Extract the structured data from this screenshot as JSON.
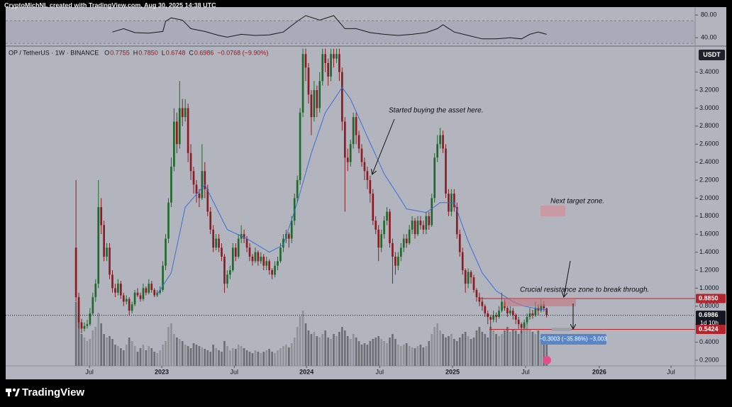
{
  "header": "CryptoMichNL created with TradingView.com, Aug 30, 2025 14:38 UTC",
  "footer_brand": "TradingView",
  "chart_data": {
    "type": "candlestick",
    "symbol": "OP / TetherUS · 1W · BINANCE",
    "ohlc_legend": [
      {
        "key": "O",
        "text": "0.7755"
      },
      {
        "key": "H",
        "text": "0.7850"
      },
      {
        "key": "L",
        "text": "0.6748"
      },
      {
        "key": "C",
        "text": "0.6986"
      }
    ],
    "change": "−0.0768 (−9.90%)",
    "currency": "USDT",
    "colors": {
      "up": "#1f6a2b",
      "down": "#8c1c22",
      "volume_up": "#8f9299",
      "volume_down": "#6c6f76"
    },
    "candles": [
      [
        1.45,
        2.2,
        0.85,
        0.9
      ],
      [
        0.9,
        0.95,
        0.55,
        0.62
      ],
      [
        0.62,
        0.66,
        0.5,
        0.55
      ],
      [
        0.55,
        0.62,
        0.52,
        0.58
      ],
      [
        0.58,
        0.65,
        0.55,
        0.6
      ],
      [
        0.6,
        0.78,
        0.58,
        0.72
      ],
      [
        0.72,
        0.95,
        0.7,
        0.9
      ],
      [
        0.9,
        1.1,
        0.85,
        1.05
      ],
      [
        1.05,
        2.2,
        1.0,
        1.9
      ],
      [
        1.9,
        2.0,
        1.6,
        1.7
      ],
      [
        1.7,
        1.75,
        1.3,
        1.35
      ],
      [
        1.35,
        1.5,
        1.3,
        1.45
      ],
      [
        1.45,
        1.5,
        1.1,
        1.15
      ],
      [
        1.15,
        1.2,
        0.95,
        1.0
      ],
      [
        1.0,
        1.05,
        0.9,
        0.95
      ],
      [
        0.95,
        1.1,
        0.92,
        1.05
      ],
      [
        1.05,
        1.08,
        0.88,
        0.92
      ],
      [
        0.92,
        0.95,
        0.8,
        0.85
      ],
      [
        0.85,
        0.92,
        0.82,
        0.88
      ],
      [
        0.88,
        0.9,
        0.7,
        0.75
      ],
      [
        0.75,
        0.85,
        0.72,
        0.82
      ],
      [
        0.82,
        0.98,
        0.8,
        0.95
      ],
      [
        0.95,
        1.0,
        0.9,
        0.92
      ],
      [
        0.92,
        0.95,
        0.85,
        0.88
      ],
      [
        0.88,
        1.05,
        0.86,
        1.0
      ],
      [
        1.0,
        1.02,
        0.92,
        0.95
      ],
      [
        0.95,
        1.1,
        0.93,
        1.05
      ],
      [
        1.05,
        1.08,
        0.95,
        0.98
      ],
      [
        0.98,
        1.0,
        0.9,
        0.92
      ],
      [
        0.92,
        0.98,
        0.9,
        0.95
      ],
      [
        0.95,
        1.02,
        0.93,
        0.98
      ],
      [
        0.98,
        1.3,
        0.96,
        1.25
      ],
      [
        1.25,
        1.6,
        1.2,
        1.55
      ],
      [
        1.55,
        2.0,
        1.5,
        1.95
      ],
      [
        1.95,
        2.45,
        1.9,
        2.35
      ],
      [
        2.35,
        3.0,
        2.3,
        2.85
      ],
      [
        2.85,
        2.95,
        2.5,
        2.6
      ],
      [
        2.6,
        3.3,
        2.55,
        3.0
      ],
      [
        3.0,
        3.1,
        2.8,
        2.9
      ],
      [
        2.9,
        3.1,
        2.85,
        3.0
      ],
      [
        3.0,
        3.05,
        2.4,
        2.5
      ],
      [
        2.5,
        2.6,
        2.2,
        2.3
      ],
      [
        2.3,
        2.35,
        2.05,
        2.15
      ],
      [
        2.15,
        2.2,
        1.95,
        2.05
      ],
      [
        2.05,
        2.1,
        1.9,
        2.0
      ],
      [
        2.0,
        2.6,
        1.98,
        2.3
      ],
      [
        2.3,
        2.4,
        2.0,
        2.1
      ],
      [
        2.1,
        2.15,
        1.8,
        1.85
      ],
      [
        1.85,
        1.9,
        1.6,
        1.65
      ],
      [
        1.65,
        1.7,
        1.4,
        1.45
      ],
      [
        1.45,
        1.6,
        1.42,
        1.55
      ],
      [
        1.55,
        1.6,
        1.4,
        1.45
      ],
      [
        1.45,
        1.5,
        1.3,
        1.35
      ],
      [
        1.35,
        1.38,
        0.95,
        1.05
      ],
      [
        1.05,
        1.2,
        1.0,
        1.15
      ],
      [
        1.15,
        1.25,
        1.1,
        1.2
      ],
      [
        1.2,
        1.5,
        1.18,
        1.45
      ],
      [
        1.45,
        1.5,
        1.3,
        1.35
      ],
      [
        1.35,
        1.6,
        1.33,
        1.55
      ],
      [
        1.55,
        1.7,
        1.5,
        1.6
      ],
      [
        1.6,
        1.65,
        1.5,
        1.55
      ],
      [
        1.55,
        1.58,
        1.4,
        1.45
      ],
      [
        1.45,
        1.5,
        1.3,
        1.35
      ],
      [
        1.35,
        1.38,
        1.25,
        1.3
      ],
      [
        1.3,
        1.45,
        1.28,
        1.4
      ],
      [
        1.4,
        1.42,
        1.25,
        1.3
      ],
      [
        1.3,
        1.4,
        1.27,
        1.35
      ],
      [
        1.35,
        1.38,
        1.2,
        1.25
      ],
      [
        1.25,
        1.35,
        1.2,
        1.3
      ],
      [
        1.3,
        1.32,
        1.15,
        1.2
      ],
      [
        1.2,
        1.22,
        1.1,
        1.15
      ],
      [
        1.15,
        1.3,
        1.12,
        1.25
      ],
      [
        1.25,
        1.35,
        1.2,
        1.3
      ],
      [
        1.3,
        1.5,
        1.28,
        1.45
      ],
      [
        1.45,
        1.6,
        1.4,
        1.55
      ],
      [
        1.55,
        1.65,
        1.5,
        1.6
      ],
      [
        1.6,
        1.62,
        1.45,
        1.55
      ],
      [
        1.55,
        1.8,
        1.5,
        1.75
      ],
      [
        1.75,
        2.05,
        1.7,
        2.0
      ],
      [
        2.0,
        2.25,
        1.95,
        2.2
      ],
      [
        2.2,
        3.0,
        2.15,
        2.95
      ],
      [
        2.95,
        3.66,
        2.9,
        3.6
      ],
      [
        3.6,
        3.66,
        3.3,
        3.45
      ],
      [
        3.45,
        3.5,
        3.05,
        3.15
      ],
      [
        3.15,
        3.2,
        2.7,
        2.9
      ],
      [
        2.9,
        3.3,
        2.85,
        3.2
      ],
      [
        3.2,
        3.25,
        2.9,
        3.0
      ],
      [
        3.0,
        3.4,
        2.95,
        3.3
      ],
      [
        3.3,
        3.66,
        3.25,
        3.6
      ],
      [
        3.6,
        3.66,
        3.4,
        3.5
      ],
      [
        3.5,
        3.55,
        3.25,
        3.35
      ],
      [
        3.35,
        3.66,
        3.3,
        3.6
      ],
      [
        3.6,
        3.66,
        3.45,
        3.55
      ],
      [
        3.55,
        3.66,
        3.5,
        3.6
      ],
      [
        3.6,
        3.66,
        3.3,
        3.4
      ],
      [
        3.4,
        3.45,
        2.75,
        2.85
      ],
      [
        2.85,
        2.9,
        1.85,
        2.45
      ],
      [
        2.45,
        2.55,
        2.3,
        2.4
      ],
      [
        2.4,
        2.65,
        2.35,
        2.6
      ],
      [
        2.6,
        2.95,
        2.55,
        2.9
      ],
      [
        2.9,
        2.95,
        2.6,
        2.7
      ],
      [
        2.7,
        2.75,
        2.5,
        2.55
      ],
      [
        2.55,
        2.6,
        2.35,
        2.4
      ],
      [
        2.4,
        2.45,
        2.2,
        2.3
      ],
      [
        2.3,
        2.35,
        2.1,
        2.2
      ],
      [
        2.2,
        2.25,
        1.95,
        2.05
      ],
      [
        2.05,
        2.1,
        1.7,
        1.75
      ],
      [
        1.75,
        1.8,
        1.6,
        1.65
      ],
      [
        1.65,
        1.7,
        1.3,
        1.45
      ],
      [
        1.45,
        1.65,
        1.4,
        1.6
      ],
      [
        1.6,
        1.8,
        1.55,
        1.75
      ],
      [
        1.75,
        1.9,
        1.7,
        1.85
      ],
      [
        1.85,
        1.88,
        1.45,
        1.5
      ],
      [
        1.5,
        1.55,
        1.05,
        1.35
      ],
      [
        1.35,
        1.4,
        1.15,
        1.25
      ],
      [
        1.25,
        1.4,
        1.2,
        1.35
      ],
      [
        1.35,
        1.5,
        1.3,
        1.45
      ],
      [
        1.45,
        1.6,
        1.4,
        1.55
      ],
      [
        1.55,
        1.6,
        1.45,
        1.5
      ],
      [
        1.5,
        1.7,
        1.48,
        1.65
      ],
      [
        1.65,
        1.8,
        1.6,
        1.75
      ],
      [
        1.75,
        1.78,
        1.55,
        1.6
      ],
      [
        1.6,
        1.8,
        1.58,
        1.75
      ],
      [
        1.75,
        1.8,
        1.65,
        1.7
      ],
      [
        1.7,
        1.75,
        1.6,
        1.65
      ],
      [
        1.65,
        1.85,
        1.6,
        1.8
      ],
      [
        1.8,
        1.85,
        1.65,
        1.7
      ],
      [
        1.7,
        2.05,
        1.68,
        2.0
      ],
      [
        2.0,
        2.5,
        1.95,
        2.45
      ],
      [
        2.45,
        2.7,
        2.4,
        2.6
      ],
      [
        2.6,
        2.78,
        2.55,
        2.7
      ],
      [
        2.7,
        2.75,
        2.5,
        2.55
      ],
      [
        2.55,
        2.6,
        2.0,
        2.05
      ],
      [
        2.05,
        2.1,
        1.8,
        1.85
      ],
      [
        1.85,
        2.1,
        1.8,
        2.05
      ],
      [
        2.05,
        2.1,
        1.85,
        1.9
      ],
      [
        1.9,
        1.95,
        1.55,
        1.6
      ],
      [
        1.6,
        1.65,
        1.35,
        1.4
      ],
      [
        1.4,
        1.45,
        1.15,
        1.2
      ],
      [
        1.2,
        1.22,
        0.95,
        1.05
      ],
      [
        1.05,
        1.22,
        1.0,
        1.18
      ],
      [
        1.18,
        1.2,
        1.05,
        1.12
      ],
      [
        1.12,
        1.15,
        0.95,
        0.98
      ],
      [
        0.98,
        1.0,
        0.85,
        0.9
      ],
      [
        0.9,
        0.95,
        0.8,
        0.85
      ],
      [
        0.85,
        0.9,
        0.75,
        0.8
      ],
      [
        0.8,
        0.82,
        0.68,
        0.72
      ],
      [
        0.72,
        0.75,
        0.6,
        0.68
      ],
      [
        0.68,
        0.7,
        0.55,
        0.65
      ],
      [
        0.65,
        0.75,
        0.62,
        0.7
      ],
      [
        0.7,
        0.73,
        0.62,
        0.68
      ],
      [
        0.68,
        0.8,
        0.66,
        0.75
      ],
      [
        0.75,
        0.95,
        0.73,
        0.85
      ],
      [
        0.85,
        0.88,
        0.75,
        0.78
      ],
      [
        0.78,
        0.8,
        0.68,
        0.72
      ],
      [
        0.72,
        0.8,
        0.7,
        0.75
      ],
      [
        0.75,
        0.78,
        0.65,
        0.7
      ],
      [
        0.7,
        0.72,
        0.6,
        0.65
      ],
      [
        0.65,
        0.68,
        0.55,
        0.6
      ],
      [
        0.6,
        0.62,
        0.5,
        0.56
      ],
      [
        0.56,
        0.65,
        0.54,
        0.62
      ],
      [
        0.62,
        0.72,
        0.6,
        0.68
      ],
      [
        0.68,
        0.78,
        0.65,
        0.72
      ],
      [
        0.72,
        0.76,
        0.66,
        0.7
      ],
      [
        0.7,
        0.85,
        0.68,
        0.78
      ],
      [
        0.78,
        0.82,
        0.7,
        0.75
      ],
      [
        0.75,
        0.88,
        0.73,
        0.82
      ],
      [
        0.82,
        0.86,
        0.74,
        0.7755
      ],
      [
        0.7755,
        0.785,
        0.6748,
        0.6986
      ]
    ],
    "xlim": [
      -25.1,
      221
    ],
    "xticks": [
      {
        "value": 4.8,
        "label": "Jul"
      },
      {
        "value": 30.6,
        "label": "2023"
      },
      {
        "value": 56.5,
        "label": "Jul"
      },
      {
        "value": 82.3,
        "label": "2024"
      },
      {
        "value": 108.4,
        "label": "Jul"
      },
      {
        "value": 134.4,
        "label": "2025"
      },
      {
        "value": 160.5,
        "label": "Jul"
      },
      {
        "value": 186.8,
        "label": "2026"
      },
      {
        "value": 212.4,
        "label": "Jul"
      }
    ],
    "ylim": [
      0.137,
      3.665
    ],
    "yticks": [
      {
        "value": 0.2,
        "label": "0.2000"
      },
      {
        "value": 0.4,
        "label": "0.4000"
      },
      {
        "value": 0.6,
        "label": "0.6000"
      },
      {
        "value": 0.8,
        "label": "0.8000"
      },
      {
        "value": 1,
        "label": "1.0000"
      },
      {
        "value": 1.2,
        "label": "1.2000"
      },
      {
        "value": 1.4,
        "label": "1.4000"
      },
      {
        "value": 1.6,
        "label": "1.6000"
      },
      {
        "value": 1.8,
        "label": "1.8000"
      },
      {
        "value": 2,
        "label": "2.0000"
      },
      {
        "value": 2.2,
        "label": "2.2000"
      },
      {
        "value": 2.4,
        "label": "2.4000"
      },
      {
        "value": 2.6,
        "label": "2.6000"
      },
      {
        "value": 2.8,
        "label": "2.8000"
      },
      {
        "value": 3,
        "label": "3.0000"
      },
      {
        "value": 3.2,
        "label": "3.2000"
      },
      {
        "value": 3.4,
        "label": "3.4000"
      }
    ],
    "volume": {
      "ylim": [
        0,
        100
      ],
      "values": [
        90,
        70,
        45,
        40,
        35,
        38,
        50,
        55,
        75,
        60,
        45,
        40,
        42,
        38,
        30,
        28,
        25,
        22,
        30,
        40,
        35,
        28,
        20,
        25,
        30,
        22,
        28,
        25,
        20,
        18,
        22,
        30,
        35,
        55,
        60,
        45,
        40,
        38,
        35,
        30,
        28,
        25,
        32,
        30,
        28,
        26,
        24,
        22,
        20,
        30,
        25,
        22,
        20,
        35,
        28,
        22,
        25,
        24,
        30,
        28,
        25,
        22,
        20,
        18,
        22,
        20,
        18,
        20,
        22,
        24,
        20,
        18,
        22,
        25,
        28,
        30,
        26,
        32,
        40,
        55,
        70,
        78,
        60,
        50,
        45,
        48,
        42,
        40,
        45,
        50,
        40,
        38,
        45,
        42,
        48,
        55,
        50,
        42,
        38,
        45,
        40,
        35,
        30,
        32,
        30,
        35,
        38,
        40,
        42,
        38,
        35,
        32,
        40,
        45,
        38,
        30,
        28,
        30,
        32,
        28,
        26,
        25,
        28,
        30,
        26,
        28,
        35,
        45,
        55,
        60,
        50,
        45,
        40,
        42,
        45,
        38,
        35,
        40,
        45,
        48,
        42,
        38,
        40,
        50,
        55,
        48,
        45,
        40,
        55,
        50,
        45,
        42,
        45,
        50,
        55,
        48,
        52,
        50,
        45,
        50,
        55,
        60,
        52,
        48,
        45,
        50,
        40,
        35,
        30
      ]
    },
    "ma": {
      "color": "#3d6fd6",
      "x": [
        29,
        34,
        39,
        46,
        54,
        61,
        69,
        74,
        79,
        84,
        89,
        95,
        98,
        103,
        110,
        115,
        118,
        125,
        130,
        135,
        140,
        145,
        150,
        156,
        160,
        165,
        168
      ],
      "values": [
        0.93,
        1.17,
        1.9,
        2.15,
        1.65,
        1.55,
        1.4,
        1.48,
        1.95,
        2.5,
        2.95,
        3.23,
        3.1,
        2.75,
        2.27,
        2.03,
        1.88,
        1.84,
        1.95,
        1.95,
        1.52,
        1.17,
        0.97,
        0.85,
        0.8,
        0.77,
        0.76
      ]
    },
    "rsi": {
      "color": "#1a1a1a",
      "ylim": [
        29,
        94
      ],
      "band": [
        30,
        70
      ],
      "yticks": [
        {
          "value": 80,
          "label": "80.00"
        },
        {
          "value": 40,
          "label": "40.00"
        }
      ],
      "x": [
        13,
        17,
        21,
        26,
        31,
        32,
        34,
        38,
        41,
        46,
        51,
        54,
        59,
        64,
        69,
        74,
        79,
        82,
        87,
        92,
        96,
        100,
        105,
        110,
        115,
        120,
        125,
        129,
        131,
        135,
        140,
        145,
        150,
        155,
        159,
        162,
        165,
        168
      ],
      "values": [
        50,
        56,
        49,
        48,
        51,
        69,
        75,
        71,
        56,
        51,
        44,
        41,
        46,
        44,
        45,
        50,
        69,
        79,
        71,
        79,
        56,
        56,
        49,
        46,
        44,
        46,
        49,
        56,
        63,
        50,
        44,
        38,
        38,
        40,
        38,
        46,
        50,
        46
      ]
    },
    "levels": [
      {
        "value": 0.885,
        "label": "0.8850",
        "color": "#b3242d"
      },
      {
        "value": 0.6986,
        "label": "0.6986",
        "color": "#131722",
        "sub": "1d 10h"
      },
      {
        "value": 0.5424,
        "label": "0.5424",
        "color": "#b3242d"
      }
    ],
    "annotations": {
      "buy": "Started buying the asset here.",
      "target": "Next target zone.",
      "resistance": "Crucial resistance zone to break through.",
      "measure": "−0.3003 (−35.86%) −3,003"
    }
  }
}
